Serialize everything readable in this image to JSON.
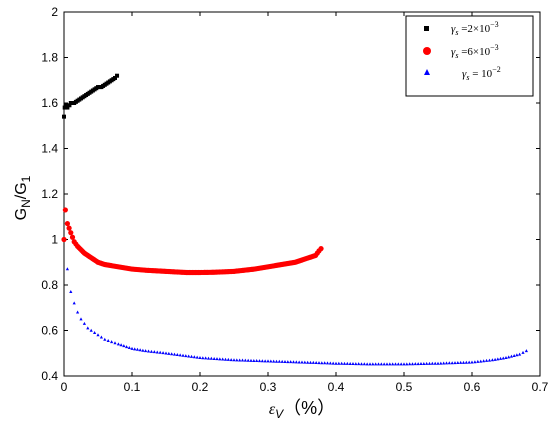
{
  "chart_data": {
    "type": "scatter",
    "xlim": [
      0,
      0.7
    ],
    "ylim": [
      0.4,
      2.0
    ],
    "x_ticks": [
      "0",
      "0.1",
      "0.2",
      "0.3",
      "0.4",
      "0.5",
      "0.6",
      "0.7"
    ],
    "y_ticks": [
      "0.4",
      "0.6",
      "0.8",
      "1",
      "1.2",
      "1.4",
      "1.6",
      "1.8",
      "2"
    ],
    "y_label_parts": [
      "G",
      "N",
      "/G",
      "1"
    ],
    "x_label_parts": [
      "ε",
      "V",
      "（%）"
    ],
    "legend_placement": "top-right",
    "grid": false,
    "series": [
      {
        "name": "γs=2×10⁻³",
        "legend_parts": [
          "γ",
          "s",
          " =2×10",
          "−3"
        ],
        "color": "#000000",
        "marker": "square",
        "x": [
          0.0,
          0.001,
          0.003,
          0.005,
          0.008,
          0.01,
          0.015,
          0.02,
          0.025,
          0.03,
          0.035,
          0.04,
          0.045,
          0.05,
          0.055,
          0.06,
          0.065,
          0.07,
          0.075,
          0.078
        ],
        "y": [
          1.54,
          1.58,
          1.59,
          1.58,
          1.59,
          1.6,
          1.6,
          1.61,
          1.62,
          1.63,
          1.64,
          1.65,
          1.66,
          1.67,
          1.67,
          1.68,
          1.69,
          1.7,
          1.71,
          1.72
        ]
      },
      {
        "name": "γs=6×10⁻³",
        "legend_parts": [
          "γ",
          "s",
          " =6×10",
          "−3"
        ],
        "color": "#ff0000",
        "marker": "circle",
        "x": [
          0.0,
          0.002,
          0.005,
          0.01,
          0.015,
          0.02,
          0.03,
          0.04,
          0.05,
          0.06,
          0.08,
          0.1,
          0.12,
          0.15,
          0.18,
          0.2,
          0.22,
          0.25,
          0.28,
          0.3,
          0.32,
          0.34,
          0.36,
          0.37,
          0.375,
          0.378
        ],
        "y": [
          1.0,
          1.13,
          1.07,
          1.03,
          0.99,
          0.97,
          0.94,
          0.92,
          0.9,
          0.89,
          0.88,
          0.87,
          0.865,
          0.86,
          0.855,
          0.855,
          0.856,
          0.86,
          0.87,
          0.88,
          0.89,
          0.9,
          0.92,
          0.93,
          0.95,
          0.96
        ]
      },
      {
        "name": "γs=10⁻²",
        "legend_parts": [
          "γ",
          "s",
          " = 10",
          "−2"
        ],
        "color": "#0000ff",
        "marker": "triangle",
        "x": [
          0.005,
          0.01,
          0.015,
          0.02,
          0.025,
          0.03,
          0.035,
          0.04,
          0.05,
          0.06,
          0.07,
          0.08,
          0.1,
          0.12,
          0.15,
          0.2,
          0.25,
          0.3,
          0.35,
          0.4,
          0.45,
          0.5,
          0.55,
          0.6,
          0.63,
          0.65,
          0.67,
          0.68
        ],
        "y": [
          0.87,
          0.77,
          0.72,
          0.68,
          0.65,
          0.63,
          0.61,
          0.6,
          0.58,
          0.56,
          0.55,
          0.54,
          0.52,
          0.51,
          0.5,
          0.48,
          0.47,
          0.465,
          0.46,
          0.455,
          0.452,
          0.452,
          0.455,
          0.46,
          0.47,
          0.48,
          0.495,
          0.51
        ]
      }
    ]
  }
}
